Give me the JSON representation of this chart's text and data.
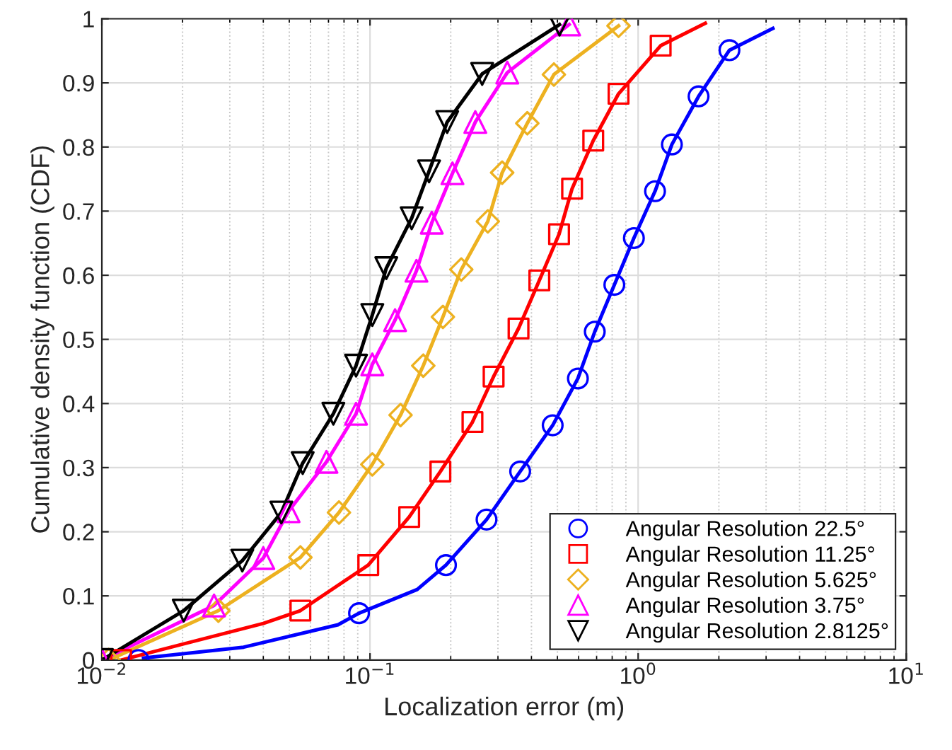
{
  "chart_data": {
    "type": "line",
    "xlabel": "Localization error (m)",
    "ylabel": "Cumulative density function (CDF)",
    "log": "x",
    "xlim": [
      0.01,
      10
    ],
    "xticks": [
      {
        "value": 0.01,
        "label": "10$^{−2}$"
      },
      {
        "value": 0.1,
        "label": "10$^{−1}$"
      },
      {
        "value": 1,
        "label": "10$^{0}$"
      },
      {
        "value": 10,
        "label": "10$^{1}$"
      }
    ],
    "ylim": [
      0,
      1
    ],
    "yticks": [
      0,
      0.1,
      0.2,
      0.3,
      0.4,
      0.5,
      0.6,
      0.7,
      0.8,
      0.9,
      1
    ],
    "grid": true,
    "legend": "bottom right",
    "series": [
      {
        "color": "#0000ff",
        "marker": "none",
        "x": [
          0.0143,
          0.0338,
          0.076,
          0.091,
          0.15,
          0.192,
          0.272,
          0.363,
          0.48,
          0.596,
          0.689,
          0.815,
          0.964,
          1.156,
          1.336,
          1.68,
          2.19,
          3.18
        ],
        "values": [
          0.003,
          0.02,
          0.055,
          0.073,
          0.11,
          0.148,
          0.219,
          0.294,
          0.366,
          0.439,
          0.512,
          0.585,
          0.658,
          0.731,
          0.804,
          0.879,
          0.951,
          0.985
        ]
      },
      {
        "color": "#ff0000",
        "marker": "none",
        "x": [
          0.0118,
          0.014,
          0.04,
          0.055,
          0.0985,
          0.14,
          0.183,
          0.241,
          0.289,
          0.358,
          0.428,
          0.507,
          0.567,
          0.68,
          0.845,
          1.213,
          1.78
        ],
        "values": [
          0.0,
          0.008,
          0.057,
          0.077,
          0.148,
          0.223,
          0.294,
          0.371,
          0.442,
          0.517,
          0.592,
          0.664,
          0.735,
          0.81,
          0.883,
          0.958,
          0.993
        ]
      },
      {
        "color": "#edb120",
        "marker": "none",
        "x": [
          0.0106,
          0.0272,
          0.055,
          0.0766,
          0.102,
          0.13,
          0.158,
          0.187,
          0.219,
          0.275,
          0.311,
          0.386,
          0.485,
          0.845
        ],
        "values": [
          0.0,
          0.077,
          0.16,
          0.23,
          0.305,
          0.382,
          0.459,
          0.535,
          0.609,
          0.684,
          0.76,
          0.837,
          0.913,
          0.989
        ]
      },
      {
        "color": "#ff00ff",
        "marker": "none",
        "x": [
          0.01,
          0.0262,
          0.04,
          0.0497,
          0.0688,
          0.0887,
          0.102,
          0.124,
          0.149,
          0.17,
          0.203,
          0.247,
          0.325,
          0.553
        ],
        "values": [
          0.0,
          0.085,
          0.159,
          0.232,
          0.309,
          0.384,
          0.461,
          0.53,
          0.607,
          0.682,
          0.759,
          0.839,
          0.916,
          0.991
        ]
      },
      {
        "color": "#000000",
        "marker": "none",
        "x": [
          0.01,
          0.0202,
          0.0334,
          0.0467,
          0.0561,
          0.073,
          0.0887,
          0.102,
          0.115,
          0.143,
          0.166,
          0.194,
          0.262,
          0.509
        ],
        "values": [
          0.0,
          0.077,
          0.155,
          0.23,
          0.307,
          0.384,
          0.459,
          0.538,
          0.611,
          0.689,
          0.762,
          0.839,
          0.914,
          0.991
        ]
      },
      {
        "type": "scatter",
        "name": "Angular Resolution 22.5°",
        "color": "#0000ff",
        "marker": "circle",
        "x": [
          0.0137,
          0.091,
          0.192,
          0.272,
          0.363,
          0.48,
          0.596,
          0.689,
          0.815,
          0.964,
          1.156,
          1.336,
          1.68,
          2.19
        ],
        "values": [
          0.0,
          0.073,
          0.148,
          0.219,
          0.294,
          0.366,
          0.439,
          0.512,
          0.585,
          0.658,
          0.731,
          0.804,
          0.879,
          0.951
        ]
      },
      {
        "type": "scatter",
        "name": "Angular Resolution 11.25°",
        "color": "#ff0000",
        "marker": "square",
        "x": [
          0.0118,
          0.055,
          0.0985,
          0.14,
          0.183,
          0.241,
          0.289,
          0.358,
          0.428,
          0.507,
          0.567,
          0.68,
          0.845,
          1.213
        ],
        "values": [
          0.0,
          0.077,
          0.148,
          0.223,
          0.294,
          0.371,
          0.442,
          0.517,
          0.592,
          0.664,
          0.735,
          0.81,
          0.883,
          0.958
        ]
      },
      {
        "type": "scatter",
        "name": "Angular Resolution 5.625°",
        "color": "#edb120",
        "marker": "diamond",
        "x": [
          0.0106,
          0.0272,
          0.055,
          0.0766,
          0.102,
          0.13,
          0.158,
          0.187,
          0.219,
          0.275,
          0.311,
          0.386,
          0.485,
          0.845
        ],
        "values": [
          0.0,
          0.077,
          0.16,
          0.23,
          0.305,
          0.382,
          0.459,
          0.535,
          0.609,
          0.684,
          0.76,
          0.837,
          0.913,
          0.989
        ]
      },
      {
        "type": "scatter",
        "name": "Angular Resolution 3.75°",
        "color": "#ff00ff",
        "marker": "triangle",
        "x": [
          0.01,
          0.0262,
          0.04,
          0.0497,
          0.0688,
          0.0887,
          0.102,
          0.124,
          0.149,
          0.17,
          0.203,
          0.247,
          0.325,
          0.553
        ],
        "values": [
          0.0,
          0.085,
          0.159,
          0.232,
          0.309,
          0.384,
          0.461,
          0.53,
          0.607,
          0.682,
          0.759,
          0.839,
          0.916,
          0.991
        ]
      },
      {
        "type": "scatter",
        "name": "Angular Resolution 2.8125°",
        "color": "#000000",
        "marker": "triangle_down",
        "x": [
          0.01,
          0.0202,
          0.0334,
          0.0467,
          0.0561,
          0.073,
          0.0887,
          0.102,
          0.115,
          0.143,
          0.166,
          0.194,
          0.262,
          0.509
        ],
        "values": [
          0.0,
          0.077,
          0.155,
          0.23,
          0.307,
          0.384,
          0.459,
          0.538,
          0.611,
          0.689,
          0.762,
          0.839,
          0.914,
          0.991
        ]
      }
    ]
  }
}
